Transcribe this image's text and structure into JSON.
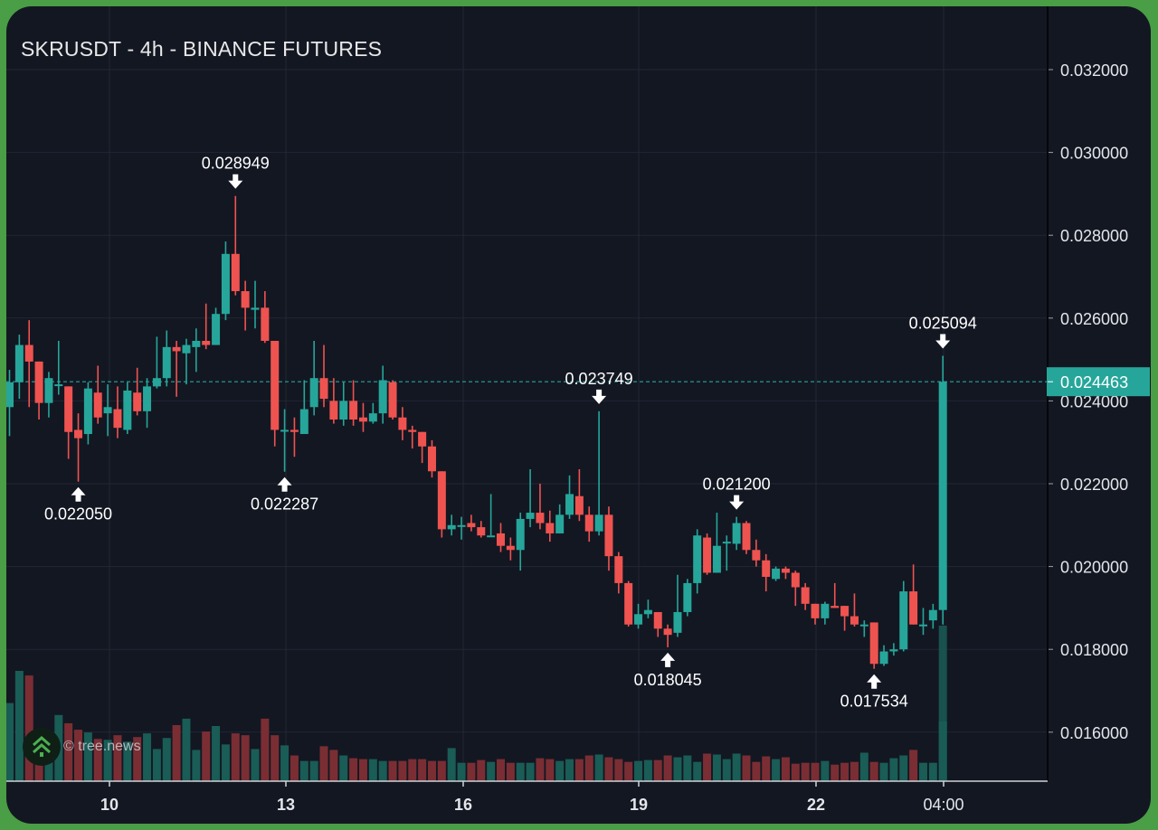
{
  "chart_data": {
    "type": "candlestick",
    "title": "SKRUSDT - 4h - BINANCE FUTURES",
    "symbol": "SKRUSDT",
    "interval": "4h",
    "exchange": "BINANCE FUTURES",
    "xlabel": "",
    "ylabel": "",
    "ylim": [
      0.0148,
      0.0334
    ],
    "y_ticks": [
      "0.032000",
      "0.030000",
      "0.028000",
      "0.026000",
      "0.024000",
      "0.022000",
      "0.020000",
      "0.018000",
      "0.016000"
    ],
    "x_ticks": [
      "10",
      "13",
      "16",
      "19",
      "22",
      "04:00"
    ],
    "grid": true,
    "current_price": "0.024463",
    "colors": {
      "up": "#26a69a",
      "down": "#ef5350",
      "vol_up": "#1a5c56",
      "vol_down": "#7a2e33",
      "background": "#131722",
      "grid": "#232734",
      "border": "#4a9e45"
    },
    "annotations": [
      {
        "label": "0.022050",
        "type": "low",
        "index": 7
      },
      {
        "label": "0.028949",
        "type": "high",
        "index": 23
      },
      {
        "label": "0.022287",
        "type": "low",
        "index": 28
      },
      {
        "label": "0.023749",
        "type": "high",
        "index": 60
      },
      {
        "label": "0.018045",
        "type": "low",
        "index": 67
      },
      {
        "label": "0.021200",
        "type": "high",
        "index": 74
      },
      {
        "label": "0.017534",
        "type": "low",
        "index": 88
      },
      {
        "label": "0.025094",
        "type": "high",
        "index": 95
      }
    ],
    "candles": [
      [
        0.02385,
        0.02445,
        0.02475,
        0.02315
      ],
      [
        0.02445,
        0.02535,
        0.0256,
        0.02405
      ],
      [
        0.02535,
        0.02495,
        0.02595,
        0.02385
      ],
      [
        0.02495,
        0.02395,
        0.02495,
        0.02355
      ],
      [
        0.02395,
        0.02455,
        0.0247,
        0.0236
      ],
      [
        0.0244,
        0.0244,
        0.02545,
        0.02415
      ],
      [
        0.02435,
        0.02325,
        0.02435,
        0.0226
      ],
      [
        0.0233,
        0.0231,
        0.0237,
        0.02205
      ],
      [
        0.0232,
        0.0243,
        0.02445,
        0.02295
      ],
      [
        0.0242,
        0.0236,
        0.02485,
        0.02345
      ],
      [
        0.0237,
        0.02385,
        0.0244,
        0.02315
      ],
      [
        0.0238,
        0.02335,
        0.02435,
        0.0231
      ],
      [
        0.0233,
        0.02425,
        0.02445,
        0.0232
      ],
      [
        0.0242,
        0.02375,
        0.0248,
        0.02365
      ],
      [
        0.02375,
        0.02435,
        0.02455,
        0.02335
      ],
      [
        0.02435,
        0.02455,
        0.02555,
        0.0243
      ],
      [
        0.02455,
        0.0253,
        0.0257,
        0.02435
      ],
      [
        0.0253,
        0.0252,
        0.02545,
        0.0241
      ],
      [
        0.02515,
        0.02535,
        0.0255,
        0.0244
      ],
      [
        0.0253,
        0.02545,
        0.02575,
        0.0247
      ],
      [
        0.02545,
        0.02535,
        0.02635,
        0.02525
      ],
      [
        0.02535,
        0.0261,
        0.02625,
        0.02535
      ],
      [
        0.0261,
        0.02755,
        0.02785,
        0.02595
      ],
      [
        0.02755,
        0.02665,
        0.02895,
        0.02655
      ],
      [
        0.02665,
        0.02625,
        0.0269,
        0.0257
      ],
      [
        0.0262,
        0.02625,
        0.0269,
        0.02575
      ],
      [
        0.02625,
        0.02545,
        0.02665,
        0.0254
      ],
      [
        0.02545,
        0.0233,
        0.02545,
        0.0229
      ],
      [
        0.0233,
        0.0233,
        0.0238,
        0.02229
      ],
      [
        0.0233,
        0.02325,
        0.0236,
        0.02265
      ],
      [
        0.0232,
        0.0238,
        0.0245,
        0.0235
      ],
      [
        0.02385,
        0.02455,
        0.02545,
        0.02365
      ],
      [
        0.02455,
        0.02405,
        0.02535,
        0.02385
      ],
      [
        0.024,
        0.02355,
        0.02455,
        0.02345
      ],
      [
        0.02355,
        0.024,
        0.02445,
        0.0234
      ],
      [
        0.024,
        0.02355,
        0.0245,
        0.0234
      ],
      [
        0.0236,
        0.0235,
        0.02395,
        0.02325
      ],
      [
        0.0235,
        0.0237,
        0.02395,
        0.02345
      ],
      [
        0.0237,
        0.0245,
        0.02485,
        0.02345
      ],
      [
        0.02445,
        0.0236,
        0.0245,
        0.02355
      ],
      [
        0.0236,
        0.0233,
        0.02385,
        0.02305
      ],
      [
        0.0233,
        0.02325,
        0.0234,
        0.02285
      ],
      [
        0.02325,
        0.0229,
        0.02325,
        0.0225
      ],
      [
        0.0229,
        0.0223,
        0.02305,
        0.02215
      ],
      [
        0.0223,
        0.0209,
        0.0223,
        0.0207
      ],
      [
        0.0209,
        0.021,
        0.02125,
        0.02075
      ],
      [
        0.021,
        0.021,
        0.0212,
        0.02065
      ],
      [
        0.02105,
        0.02095,
        0.02125,
        0.02085
      ],
      [
        0.02095,
        0.02075,
        0.0211,
        0.0207
      ],
      [
        0.02075,
        0.02075,
        0.02175,
        0.02075
      ],
      [
        0.0208,
        0.0205,
        0.02105,
        0.02035
      ],
      [
        0.0205,
        0.0204,
        0.0207,
        0.02015
      ],
      [
        0.0204,
        0.02115,
        0.0213,
        0.0199
      ],
      [
        0.02115,
        0.0213,
        0.02235,
        0.02095
      ],
      [
        0.0213,
        0.02105,
        0.022,
        0.0209
      ],
      [
        0.02105,
        0.0208,
        0.02135,
        0.0206
      ],
      [
        0.0208,
        0.02125,
        0.0215,
        0.0208
      ],
      [
        0.02125,
        0.02175,
        0.0222,
        0.02115
      ],
      [
        0.0217,
        0.02125,
        0.02235,
        0.0211
      ],
      [
        0.02125,
        0.02085,
        0.02145,
        0.0206
      ],
      [
        0.02085,
        0.02125,
        0.02375,
        0.02075
      ],
      [
        0.02125,
        0.02025,
        0.02145,
        0.0199
      ],
      [
        0.02025,
        0.0196,
        0.02035,
        0.01935
      ],
      [
        0.0196,
        0.0186,
        0.01965,
        0.01855
      ],
      [
        0.0186,
        0.01885,
        0.0191,
        0.0185
      ],
      [
        0.01885,
        0.01895,
        0.0192,
        0.01875
      ],
      [
        0.0189,
        0.0185,
        0.0189,
        0.0183
      ],
      [
        0.0185,
        0.01835,
        0.0186,
        0.01805
      ],
      [
        0.0184,
        0.0189,
        0.0198,
        0.0183
      ],
      [
        0.0189,
        0.0196,
        0.0197,
        0.0188
      ],
      [
        0.0196,
        0.02075,
        0.0209,
        0.01935
      ],
      [
        0.0207,
        0.01985,
        0.0208,
        0.0198
      ],
      [
        0.01985,
        0.0205,
        0.0213,
        0.01985
      ],
      [
        0.0206,
        0.0206,
        0.02075,
        0.0199
      ],
      [
        0.02055,
        0.02105,
        0.0212,
        0.0204
      ],
      [
        0.02105,
        0.0204,
        0.0211,
        0.0203
      ],
      [
        0.0204,
        0.02015,
        0.02065,
        0.02
      ],
      [
        0.02015,
        0.01975,
        0.0203,
        0.0194
      ],
      [
        0.0197,
        0.01995,
        0.02,
        0.01965
      ],
      [
        0.01995,
        0.01985,
        0.02,
        0.0197
      ],
      [
        0.01985,
        0.0195,
        0.0199,
        0.01905
      ],
      [
        0.0195,
        0.0191,
        0.0196,
        0.01895
      ],
      [
        0.0191,
        0.01875,
        0.0191,
        0.0186
      ],
      [
        0.01875,
        0.0191,
        0.01915,
        0.0186
      ],
      [
        0.01905,
        0.019,
        0.0196,
        0.019
      ],
      [
        0.01905,
        0.0188,
        0.01905,
        0.01845
      ],
      [
        0.0188,
        0.0186,
        0.01935,
        0.01855
      ],
      [
        0.0186,
        0.0186,
        0.0187,
        0.0183
      ],
      [
        0.01865,
        0.01765,
        0.01865,
        0.01753
      ],
      [
        0.01765,
        0.01795,
        0.0181,
        0.0176
      ],
      [
        0.01795,
        0.018,
        0.01815,
        0.01785
      ],
      [
        0.018,
        0.0194,
        0.01965,
        0.01795
      ],
      [
        0.0194,
        0.0186,
        0.02005,
        0.0186
      ],
      [
        0.0186,
        0.0186,
        0.019,
        0.01835
      ],
      [
        0.0187,
        0.01895,
        0.0191,
        0.0185
      ],
      [
        0.01895,
        0.02446,
        0.02509,
        0.0186
      ]
    ],
    "volumes": [
      85,
      120,
      115,
      40,
      22,
      72,
      63,
      56,
      53,
      46,
      45,
      50,
      43,
      48,
      52,
      35,
      47,
      61,
      68,
      34,
      54,
      60,
      40,
      52,
      50,
      35,
      68,
      50,
      39,
      28,
      22,
      22,
      38,
      34,
      28,
      25,
      24,
      24,
      22,
      22,
      22,
      24,
      24,
      22,
      22,
      36,
      20,
      20,
      23,
      21,
      24,
      20,
      20,
      20,
      25,
      24,
      22,
      24,
      24,
      28,
      29,
      26,
      24,
      21,
      22,
      23,
      23,
      28,
      26,
      28,
      21,
      30,
      29,
      24,
      30,
      28,
      21,
      27,
      24,
      26,
      19,
      20,
      20,
      22,
      18,
      20,
      21,
      31,
      21,
      20,
      25,
      28,
      34,
      20,
      20,
      65
    ]
  },
  "watermark": {
    "text": "© tree.news",
    "icon": "tree-news-logo-icon"
  }
}
